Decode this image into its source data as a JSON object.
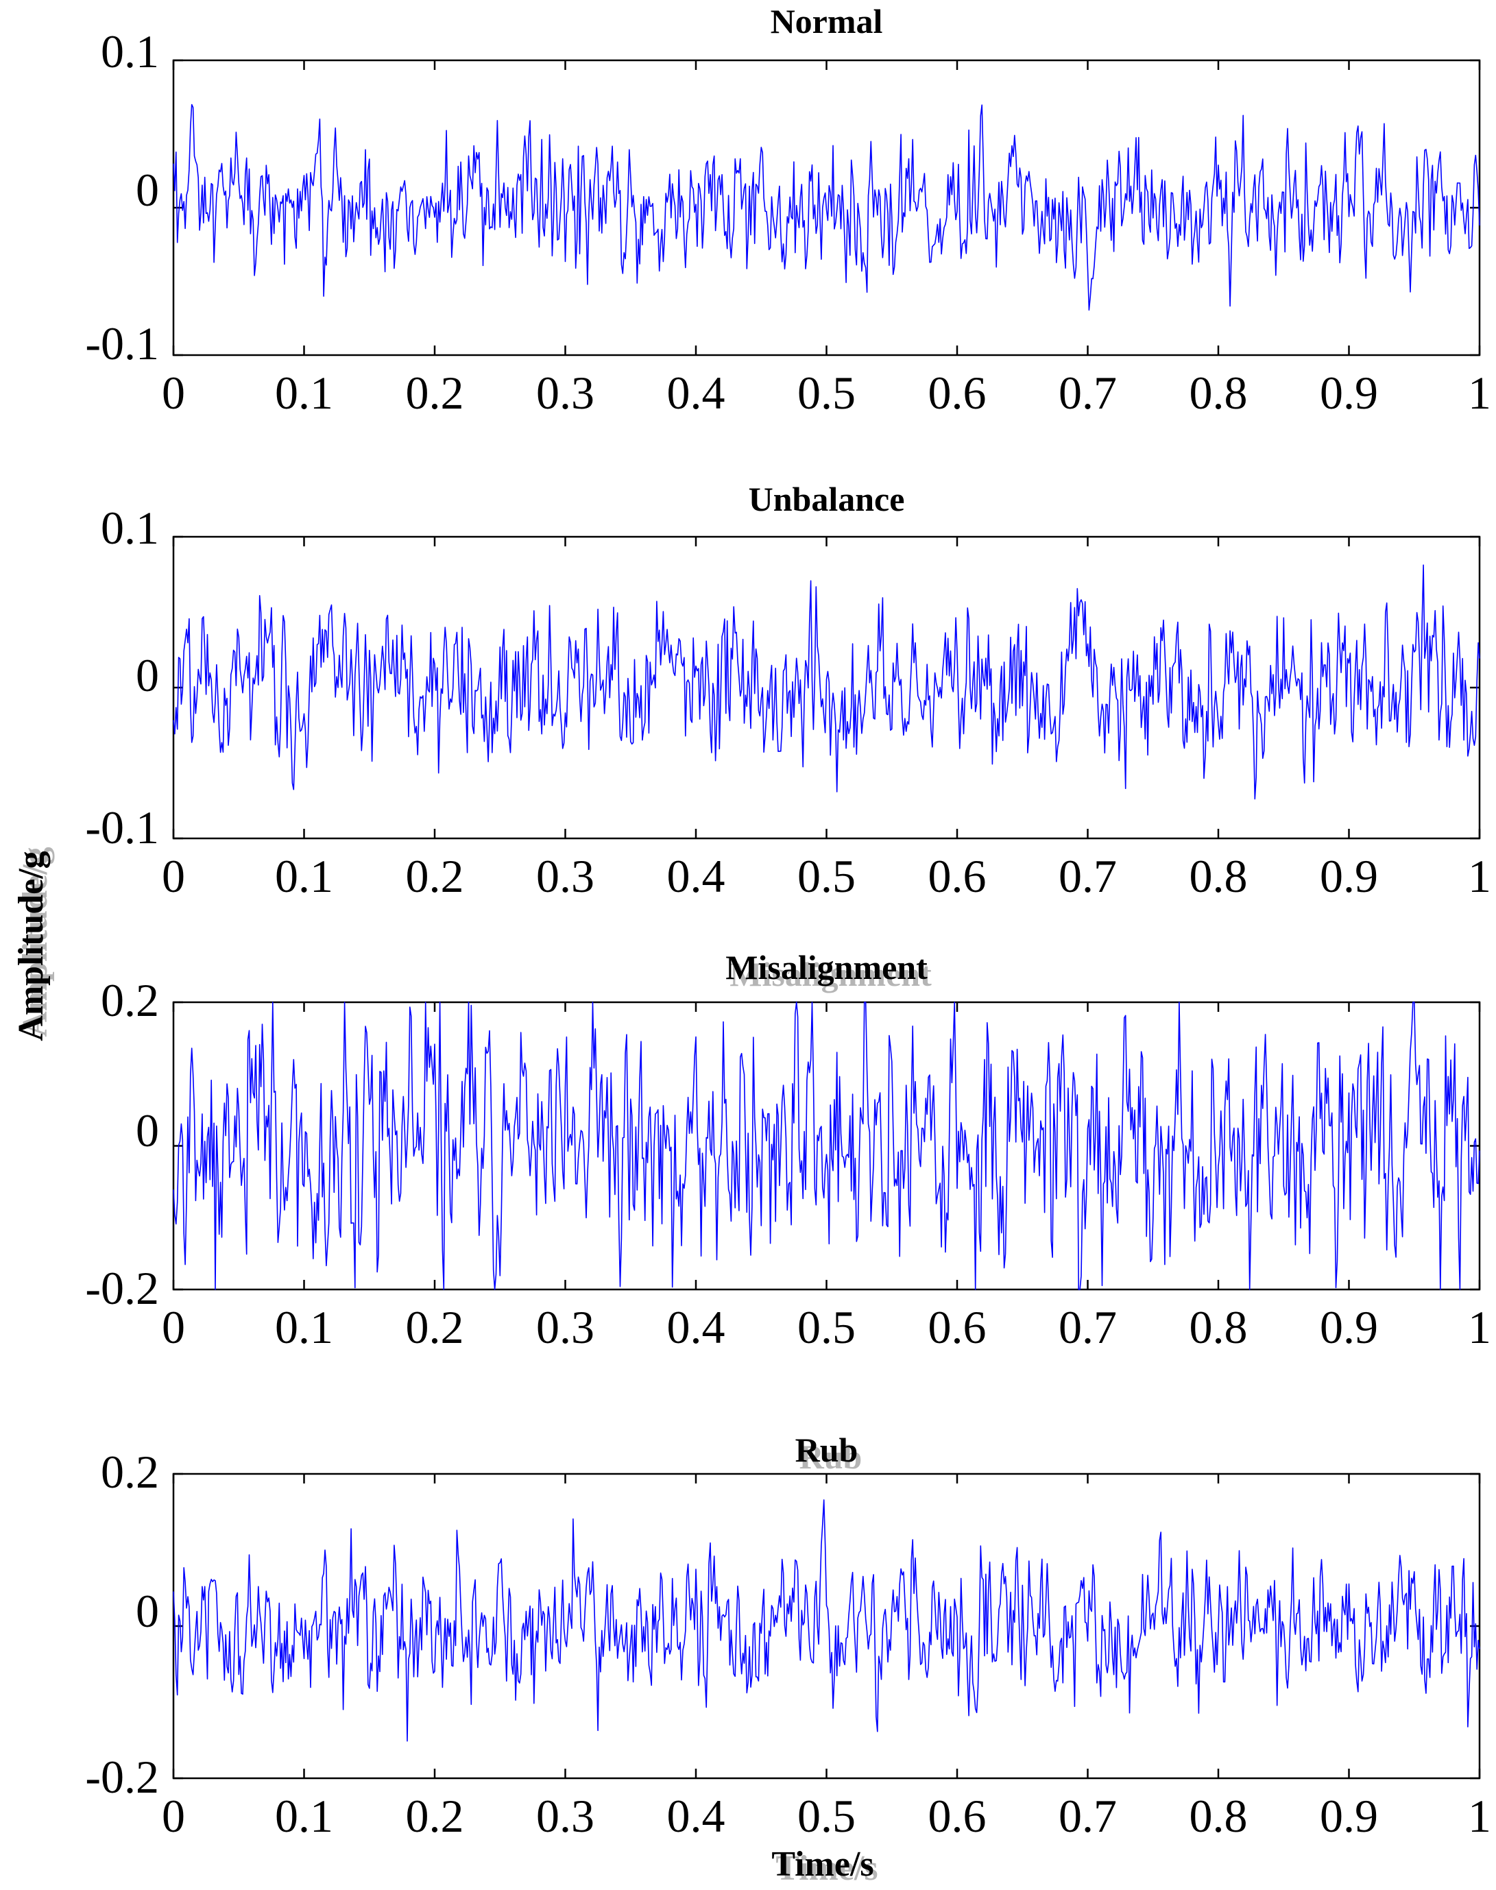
{
  "figure": {
    "ylabel": "Amplitude/g",
    "xlabel": "Time/s"
  },
  "chart_data": [
    {
      "type": "line",
      "title": "Normal",
      "xlim": [
        0,
        1
      ],
      "ylim": [
        -0.1,
        0.1
      ],
      "x_ticks": [
        "0",
        "0.1",
        "0.2",
        "0.3",
        "0.4",
        "0.5",
        "0.6",
        "0.7",
        "0.8",
        "0.9",
        "1"
      ],
      "y_ticks": [
        "0.1",
        "0",
        "-0.1"
      ],
      "series_color": "#0000ff",
      "signal": {
        "samples": 1000,
        "amplitude_rms": 0.02,
        "amplitude_peak": 0.07,
        "periodic_hz": 0
      }
    },
    {
      "type": "line",
      "title": "Unbalance",
      "xlim": [
        0,
        1
      ],
      "ylim": [
        -0.1,
        0.1
      ],
      "x_ticks": [
        "0",
        "0.1",
        "0.2",
        "0.3",
        "0.4",
        "0.5",
        "0.6",
        "0.7",
        "0.8",
        "0.9",
        "1"
      ],
      "y_ticks": [
        "0.1",
        "0",
        "-0.1"
      ],
      "series_color": "#0000ff",
      "signal": {
        "samples": 1000,
        "amplitude_rms": 0.022,
        "amplitude_peak": 0.1,
        "periodic_hz": 19
      }
    },
    {
      "type": "line",
      "title": "Misalignment",
      "xlim": [
        0,
        1
      ],
      "ylim": [
        -0.2,
        0.2
      ],
      "x_ticks": [
        "0",
        "0.1",
        "0.2",
        "0.3",
        "0.4",
        "0.5",
        "0.6",
        "0.7",
        "0.8",
        "0.9",
        "1"
      ],
      "y_ticks": [
        "0.2",
        "0",
        "-0.2"
      ],
      "series_color": "#0000ff",
      "signal": {
        "samples": 1000,
        "amplitude_rms": 0.07,
        "amplitude_peak": 0.2,
        "periodic_hz": 0
      }
    },
    {
      "type": "line",
      "title": "Rub",
      "xlim": [
        0,
        1
      ],
      "ylim": [
        -0.2,
        0.2
      ],
      "x_ticks": [
        "0",
        "0.1",
        "0.2",
        "0.3",
        "0.4",
        "0.5",
        "0.6",
        "0.7",
        "0.8",
        "0.9",
        "1"
      ],
      "y_ticks": [
        "0.2",
        "0",
        "-0.2"
      ],
      "series_color": "#0000ff",
      "signal": {
        "samples": 1000,
        "amplitude_rms": 0.04,
        "amplitude_peak": 0.17,
        "periodic_hz": 0
      }
    }
  ]
}
